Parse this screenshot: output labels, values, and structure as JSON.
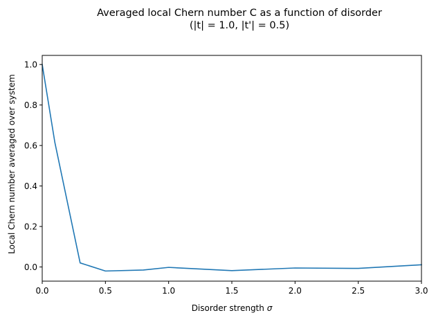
{
  "chart_data": {
    "type": "line",
    "title_line1": "Averaged local Chern number C as a function of disorder",
    "title_line2": "(|t| = 1.0, |t'| = 0.5)",
    "xlabel_text": "Disorder strength ",
    "xlabel_symbol": "σ",
    "ylabel": "Local Chern number averaged over system",
    "xlim": [
      0.0,
      3.0
    ],
    "ylim": [
      -0.07,
      1.045
    ],
    "xticks": [
      {
        "value": 0.0,
        "label": "0.0"
      },
      {
        "value": 0.5,
        "label": "0.5"
      },
      {
        "value": 1.0,
        "label": "1.0"
      },
      {
        "value": 1.5,
        "label": "1.5"
      },
      {
        "value": 2.0,
        "label": "2.0"
      },
      {
        "value": 2.5,
        "label": "2.5"
      },
      {
        "value": 3.0,
        "label": "3.0"
      }
    ],
    "yticks": [
      {
        "value": 0.0,
        "label": "0.0"
      },
      {
        "value": 0.2,
        "label": "0.2"
      },
      {
        "value": 0.4,
        "label": "0.4"
      },
      {
        "value": 0.6,
        "label": "0.6"
      },
      {
        "value": 0.8,
        "label": "0.8"
      },
      {
        "value": 1.0,
        "label": "1.0"
      }
    ],
    "grid": false,
    "series": [
      {
        "color": "#1f77b4",
        "x": [
          0.0,
          0.1,
          0.3,
          0.5,
          0.8,
          1.0,
          1.5,
          2.0,
          2.5,
          3.0
        ],
        "y": [
          1.0,
          0.615,
          0.02,
          -0.02,
          -0.015,
          -0.002,
          -0.018,
          -0.005,
          -0.007,
          0.011
        ]
      }
    ]
  }
}
